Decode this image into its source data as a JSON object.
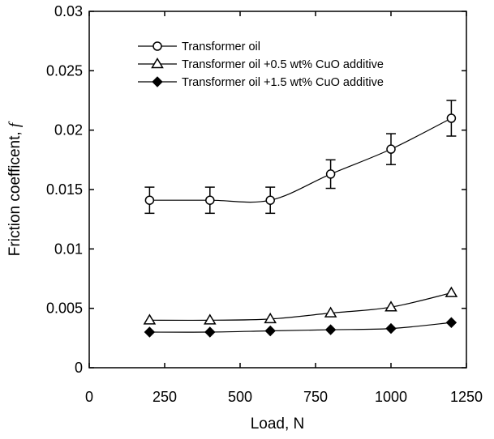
{
  "chart_data": {
    "type": "line",
    "xlabel": "Load, N",
    "ylabel": "Friction coefficent, ",
    "ylabel_symbol": "f",
    "xlim": [
      0,
      1250
    ],
    "ylim": [
      0,
      0.03
    ],
    "x_ticks": [
      "0",
      "250",
      "500",
      "750",
      "1000",
      "1250"
    ],
    "y_ticks": [
      "0",
      "0.005",
      "0.01",
      "0.015",
      "0.02",
      "0.025",
      "0.03"
    ],
    "grid": false,
    "legend_position": "top-left",
    "series": [
      {
        "name": "Transformer oil",
        "marker": "circle-open",
        "x": [
          200,
          400,
          600,
          800,
          1000,
          1200
        ],
        "y": [
          0.0141,
          0.0141,
          0.0141,
          0.0163,
          0.0184,
          0.021
        ],
        "error": [
          0.0011,
          0.0011,
          0.0011,
          0.0012,
          0.0013,
          0.0015
        ]
      },
      {
        "name": "Transformer oil +0.5 wt% CuO additive",
        "marker": "triangle-open",
        "x": [
          200,
          400,
          600,
          800,
          1000,
          1200
        ],
        "y": [
          0.004,
          0.004,
          0.0041,
          0.0046,
          0.0051,
          0.0063
        ]
      },
      {
        "name": "Transformer oil +1.5 wt% CuO additive",
        "marker": "diamond-filled",
        "x": [
          200,
          400,
          600,
          800,
          1000,
          1200
        ],
        "y": [
          0.003,
          0.003,
          0.0031,
          0.0032,
          0.0033,
          0.0038
        ]
      }
    ]
  },
  "colors": {
    "axis": "#000000",
    "line": "#000000",
    "marker_fill_open": "#ffffff",
    "marker_fill_solid": "#000000"
  }
}
